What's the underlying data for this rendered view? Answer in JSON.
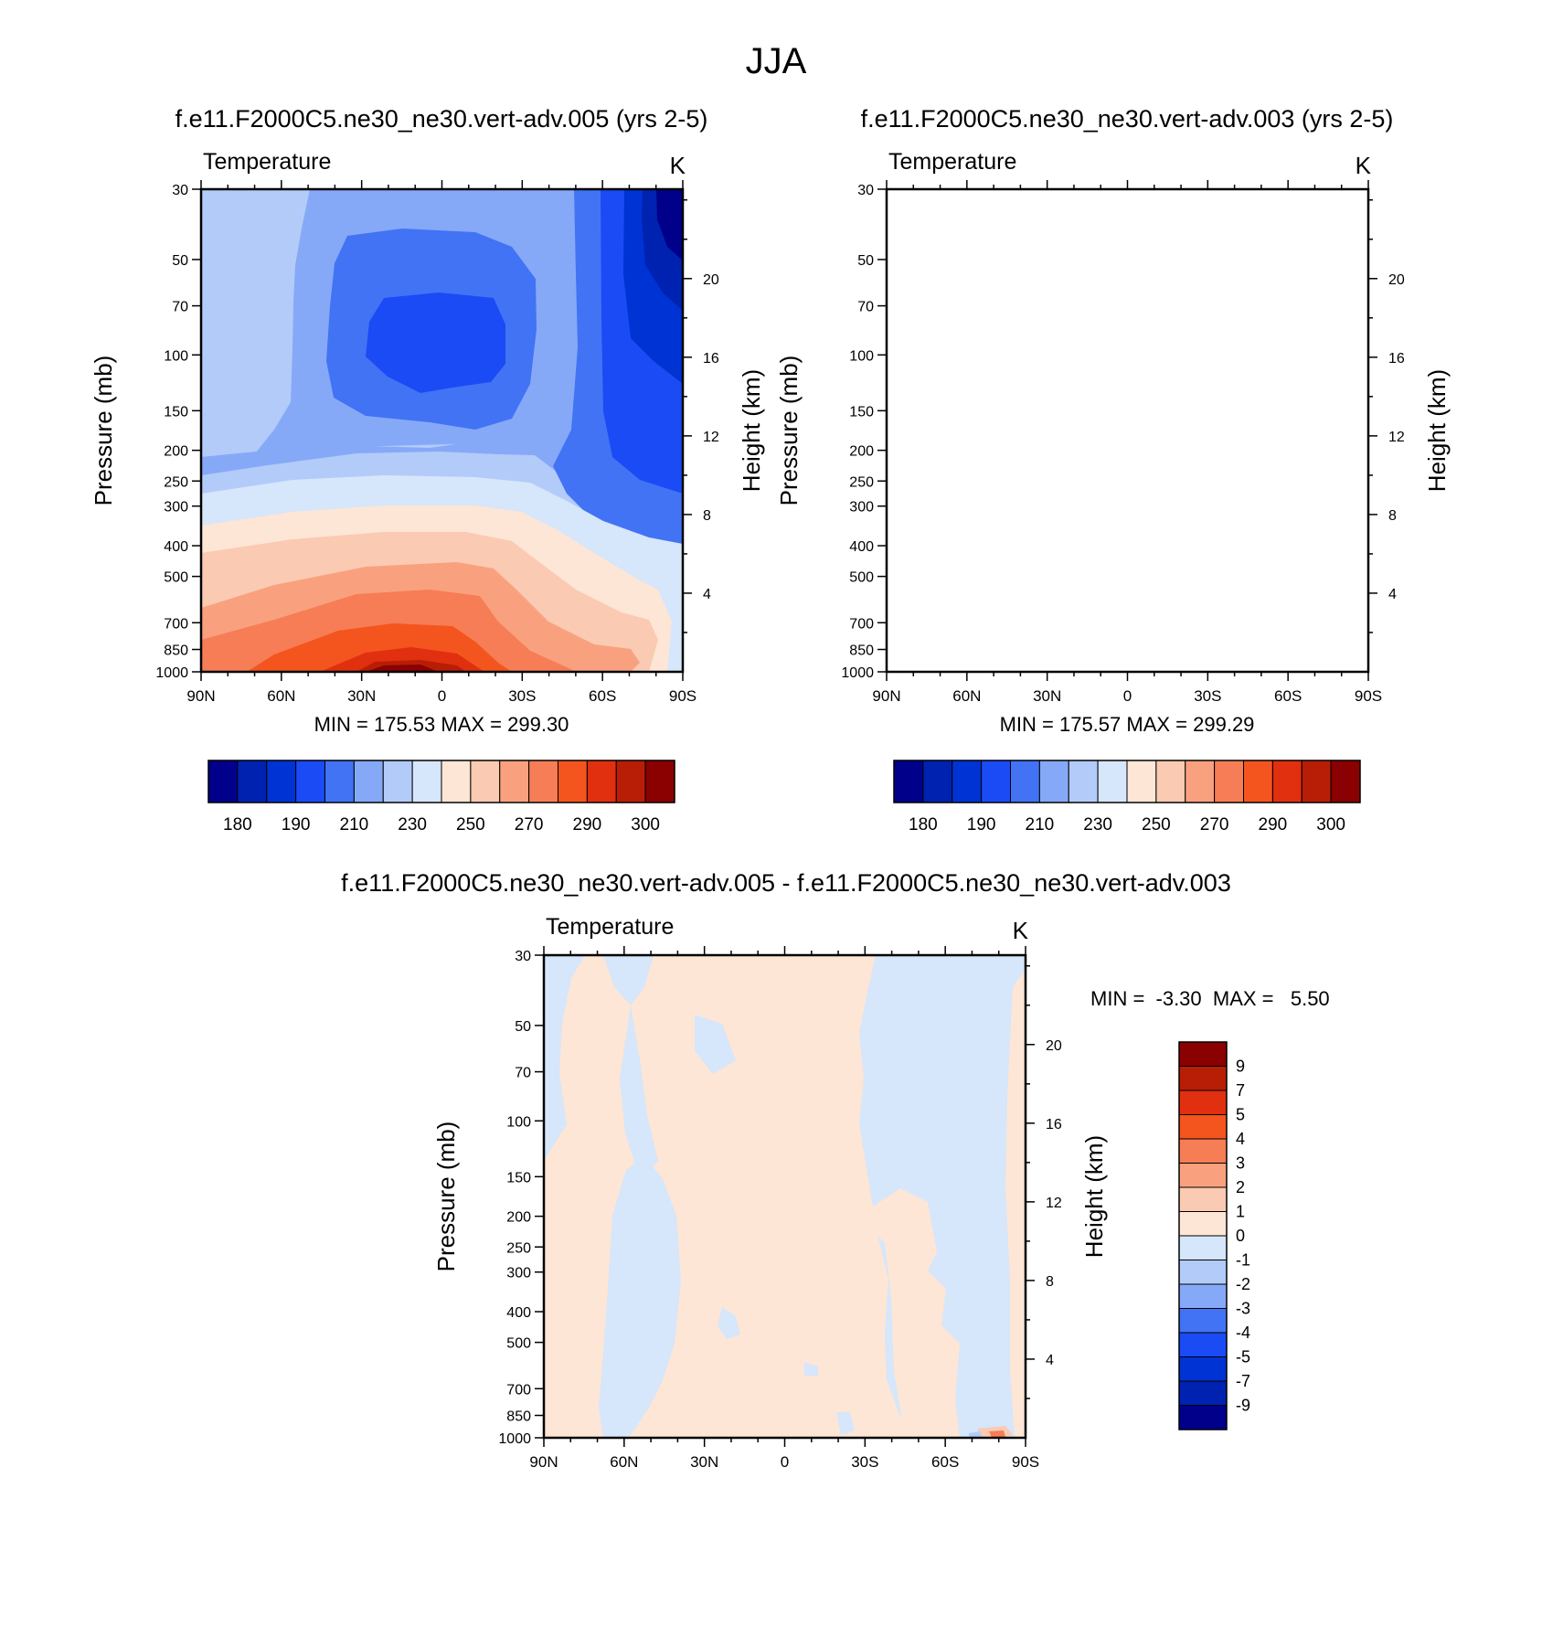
{
  "figure": {
    "title": "JJA"
  },
  "palette": {
    "blues": [
      "#00008b",
      "#0022b0",
      "#0033d4",
      "#1a4bf5",
      "#4273f5",
      "#86a9f7",
      "#b3cbf9",
      "#d6e6fb"
    ],
    "reds": [
      "#fde6d5",
      "#fbcab2",
      "#f9a17e",
      "#f67d55",
      "#f4551e",
      "#e03010",
      "#b81e06",
      "#8b0000"
    ],
    "zero_neg": "#d6e6fb",
    "zero_pos": "#fde6d5"
  },
  "chart_data": [
    {
      "type": "heatmap",
      "title": "f.e11.F2000C5.ne30_ne30.vert-adv.005 (yrs 2-5)",
      "left_string": "Temperature",
      "right_string": "K",
      "xlabel": "",
      "ylabel": "Pressure (mb)",
      "ylabel_right": "Height (km)",
      "x_ticks": [
        "90N",
        "60N",
        "30N",
        "0",
        "30S",
        "60S",
        "90S"
      ],
      "y_ticks": [
        30,
        50,
        70,
        100,
        150,
        200,
        250,
        300,
        400,
        500,
        700,
        850,
        1000
      ],
      "y_ticks_right": [
        4,
        8,
        12,
        16,
        20
      ],
      "ylim": [
        1000,
        30
      ],
      "y_scale": "log",
      "stats": "MIN = 175.53  MAX = 299.30",
      "min": 175.53,
      "max": 299.3,
      "colorbar_orientation": "horizontal",
      "levels": [
        175,
        180,
        185,
        190,
        200,
        210,
        220,
        230,
        240,
        250,
        260,
        270,
        280,
        290,
        295,
        300
      ],
      "colorbar_labels": [
        "180",
        "190",
        "210",
        "230",
        "250",
        "270",
        "290",
        "300"
      ]
    },
    {
      "type": "heatmap",
      "title": "f.e11.F2000C5.ne30_ne30.vert-adv.003 (yrs 2-5)",
      "left_string": "Temperature",
      "right_string": "K",
      "xlabel": "",
      "ylabel": "Pressure (mb)",
      "ylabel_right": "Height (km)",
      "x_ticks": [
        "90N",
        "60N",
        "30N",
        "0",
        "30S",
        "60S",
        "90S"
      ],
      "y_ticks": [
        30,
        50,
        70,
        100,
        150,
        200,
        250,
        300,
        400,
        500,
        700,
        850,
        1000
      ],
      "y_ticks_right": [
        4,
        8,
        12,
        16,
        20
      ],
      "ylim": [
        1000,
        30
      ],
      "y_scale": "log",
      "stats": "MIN = 175.57  MAX = 299.29",
      "min": 175.57,
      "max": 299.29,
      "colorbar_orientation": "horizontal",
      "levels": [
        175,
        180,
        185,
        190,
        200,
        210,
        220,
        230,
        240,
        250,
        260,
        270,
        280,
        290,
        295,
        300
      ],
      "colorbar_labels": [
        "180",
        "190",
        "210",
        "230",
        "250",
        "270",
        "290",
        "300"
      ]
    },
    {
      "type": "heatmap",
      "title": "f.e11.F2000C5.ne30_ne30.vert-adv.005 - f.e11.F2000C5.ne30_ne30.vert-adv.003",
      "left_string": "Temperature",
      "right_string": "K",
      "xlabel": "",
      "ylabel": "Pressure (mb)",
      "ylabel_right": "Height (km)",
      "x_ticks": [
        "90N",
        "60N",
        "30N",
        "0",
        "30S",
        "60S",
        "90S"
      ],
      "y_ticks": [
        30,
        50,
        70,
        100,
        150,
        200,
        250,
        300,
        400,
        500,
        700,
        850,
        1000
      ],
      "y_ticks_right": [
        4,
        8,
        12,
        16,
        20
      ],
      "ylim": [
        1000,
        30
      ],
      "y_scale": "log",
      "stats": "MIN =  -3.30  MAX =   5.50",
      "min": -3.3,
      "max": 5.5,
      "colorbar_orientation": "vertical",
      "colorbar_labels": [
        "9",
        "7",
        "5",
        "4",
        "3",
        "2",
        "1",
        "0",
        "-1",
        "-2",
        "-3",
        "-4",
        "-5",
        "-7",
        "-9"
      ]
    }
  ]
}
